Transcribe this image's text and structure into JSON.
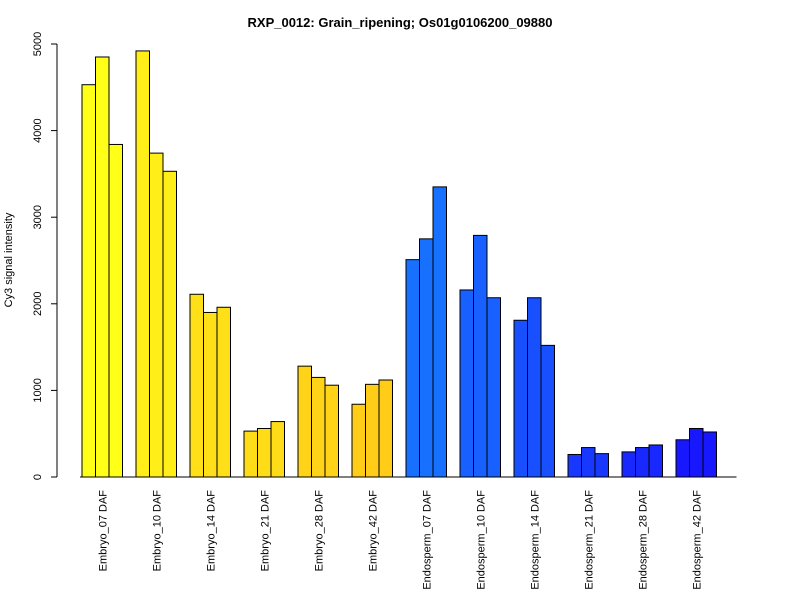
{
  "chart_data": {
    "type": "bar",
    "title": "RXP_0012: Grain_ripening; Os01g0106200_09880",
    "ylabel": "Cy3 signal intensity",
    "xlabel": "",
    "ylim": [
      0,
      5000
    ],
    "yticks": [
      0,
      1000,
      2000,
      3000,
      4000,
      5000
    ],
    "grid": false,
    "categories": [
      "Embryo_07 DAF",
      "Embryo_10 DAF",
      "Embryo_14 DAF",
      "Embryo_21 DAF",
      "Embryo_28 DAF",
      "Embryo_42 DAF",
      "Endosperm_07 DAF",
      "Endosperm_10 DAF",
      "Endosperm_14 DAF",
      "Endosperm_21 DAF",
      "Endosperm_28 DAF",
      "Endosperm_42 DAF"
    ],
    "values": [
      [
        4530,
        4850,
        3840
      ],
      [
        4920,
        3740,
        3530
      ],
      [
        2110,
        1900,
        1960
      ],
      [
        530,
        560,
        640
      ],
      [
        1280,
        1150,
        1060
      ],
      [
        840,
        1070,
        1120
      ],
      [
        2510,
        2750,
        3350
      ],
      [
        2160,
        2790,
        2070
      ],
      [
        1810,
        2070,
        1520
      ],
      [
        260,
        340,
        270
      ],
      [
        290,
        340,
        370
      ],
      [
        430,
        560,
        520
      ]
    ],
    "colors": [
      "#ffff18",
      "#ffee18",
      "#ffe018",
      "#ffdc18",
      "#ffd418",
      "#ffcc18",
      "#1870ff",
      "#1860ff",
      "#1850ff",
      "#1838ff",
      "#1828ff",
      "#1818ff"
    ]
  }
}
